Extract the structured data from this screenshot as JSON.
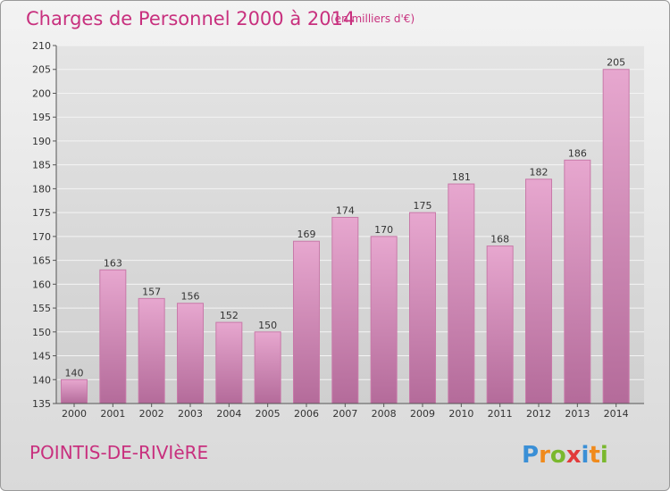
{
  "header": {
    "title": "Charges de Personnel 2000 à 2014",
    "unit": "(en milliers d'€)"
  },
  "commune": "POINTIS-DE-RIVIèRE",
  "logo": {
    "letters": [
      "P",
      "r",
      "o",
      "x",
      "i",
      "t",
      "i"
    ],
    "colors": [
      "#3a8fd6",
      "#f08a1c",
      "#7ab82e",
      "#e23b3b",
      "#3a8fd6",
      "#f08a1c",
      "#7ab82e"
    ]
  },
  "colors": {
    "bar_light": "#e7a7cf",
    "bar_dark": "#b46b9a",
    "bar_stroke": "#c87aa9",
    "accent": "#c8307e"
  },
  "chart_data": {
    "type": "bar",
    "title": "Charges de Personnel 2000 à 2014",
    "subtitle": "(en milliers d'€)",
    "categories": [
      "2000",
      "2001",
      "2002",
      "2003",
      "2004",
      "2005",
      "2006",
      "2007",
      "2008",
      "2009",
      "2010",
      "2011",
      "2012",
      "2013",
      "2014"
    ],
    "values": [
      140,
      163,
      157,
      156,
      152,
      150,
      169,
      174,
      170,
      175,
      181,
      168,
      182,
      186,
      205
    ],
    "ylim": [
      135,
      210
    ],
    "yticks": [
      135,
      140,
      145,
      150,
      155,
      160,
      165,
      170,
      175,
      180,
      185,
      190,
      195,
      200,
      205,
      210
    ],
    "grid": true
  }
}
